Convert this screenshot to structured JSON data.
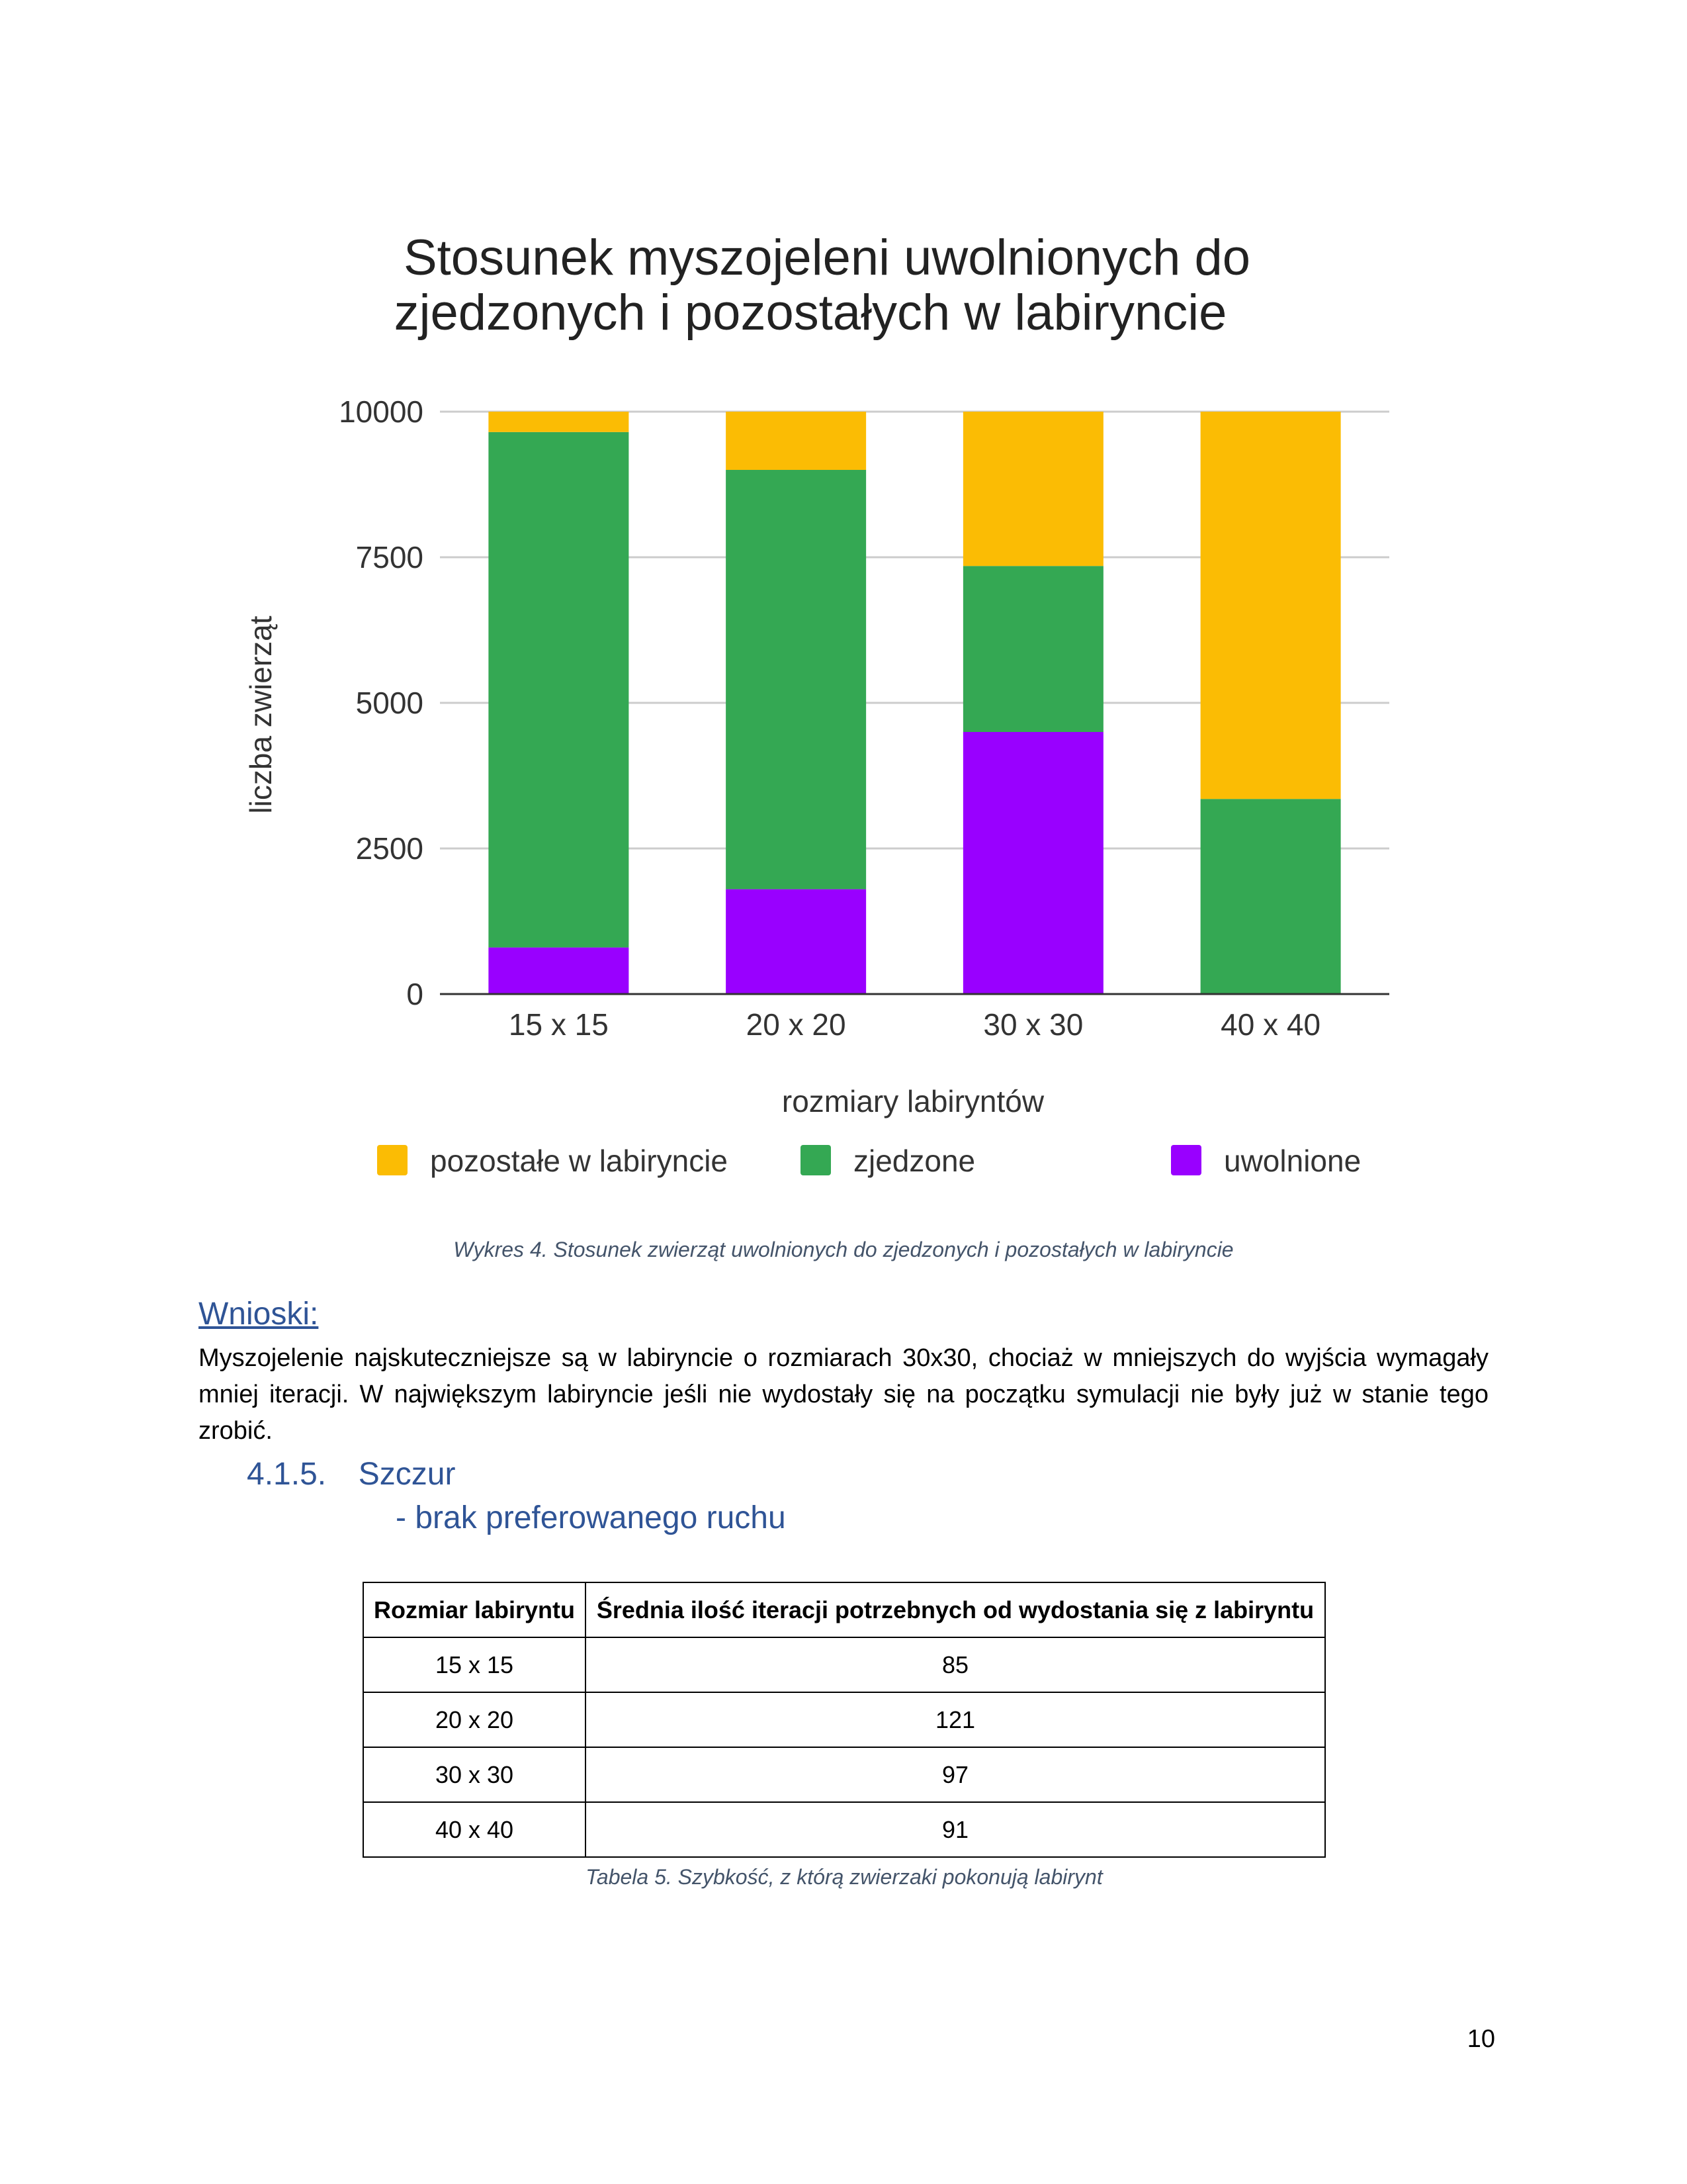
{
  "chart_data": {
    "type": "bar",
    "stacked": true,
    "title": "Stosunek myszojeleni uwolnionych do zjedzonych i pozostałych w labiryncie",
    "title_lines": [
      "Stosunek myszojeleni uwolnionych do",
      "zjedzonych i pozostałych w labiryncie"
    ],
    "xlabel": "rozmiary labiryntów",
    "ylabel": "liczba zwierząt",
    "ylim": [
      0,
      10000
    ],
    "yticks": [
      "0",
      "2500",
      "5000",
      "7500",
      "10000"
    ],
    "ytick_values": [
      0,
      2500,
      5000,
      7500,
      10000
    ],
    "categories": [
      "15 x 15",
      "20 x 20",
      "30 x 30",
      "40 x 40"
    ],
    "series": [
      {
        "name": "uwolnione",
        "color": "#9900ff",
        "values": [
          800,
          1800,
          4500,
          0
        ]
      },
      {
        "name": "zjedzone",
        "color": "#34a853",
        "values": [
          8850,
          7200,
          2850,
          3350
        ]
      },
      {
        "name": "pozostałe w labiryncie",
        "color": "#fbbc04",
        "values": [
          350,
          1000,
          2650,
          6650
        ]
      }
    ],
    "legend_order": [
      "pozostałe w labiryncie",
      "zjedzone",
      "uwolnione"
    ],
    "legend_position": "bottom",
    "grid": true
  },
  "figure_caption": "Wykres 4. Stosunek zwierząt uwolnionych do zjedzonych i pozostałych w labiryncie",
  "conclusions": {
    "heading": "Wnioski: ",
    "text": "Myszojelenie najskuteczniejsze są w labiryncie o rozmiarach 30x30, chociaż w mniejszych do wyjścia wymagały mniej iteracji. W największym labiryncie jeśli nie wydostały się na początku symulacji nie były już w stanie tego zrobić."
  },
  "section": {
    "number": "4.1.5.",
    "title": "Szczur",
    "subtitle": "- brak preferowanego ruchu"
  },
  "table": {
    "headers": [
      "Rozmiar labiryntu",
      "Średnia ilość iteracji potrzebnych od wydostania się z labiryntu"
    ],
    "rows": [
      [
        "15 x 15",
        "85"
      ],
      [
        "20 x 20",
        "121"
      ],
      [
        "30 x 30",
        "97"
      ],
      [
        "40 x 40",
        "91"
      ]
    ],
    "caption": "Tabela 5. Szybkość, z którą zwierzaki pokonują labirynt"
  },
  "page_number": "10"
}
